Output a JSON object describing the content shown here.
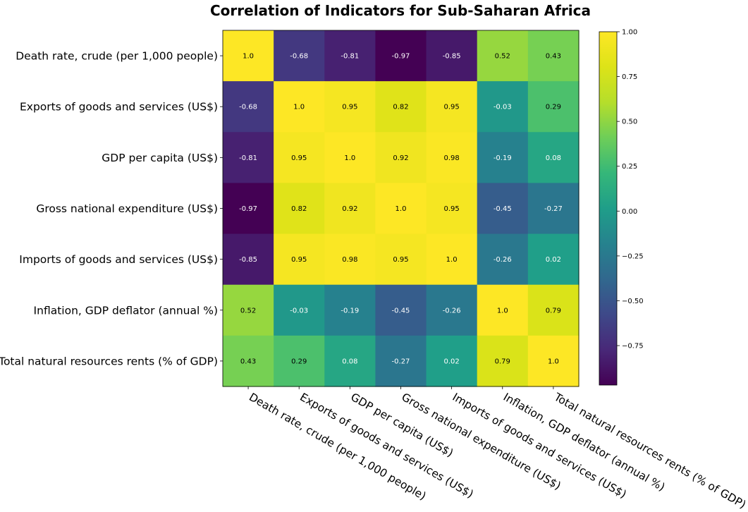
{
  "chart_data": {
    "type": "heatmap",
    "title": "Correlation of Indicators for Sub-Saharan Africa",
    "labels": [
      "Death rate, crude (per 1,000 people)",
      "Exports of goods and services (US$)",
      "GDP per capita (US$)",
      "Gross national expenditure (US$)",
      "Imports of goods and services (US$)",
      "Inflation, GDP deflator (annual %)",
      "Total natural resources rents (% of GDP)"
    ],
    "values": [
      [
        1.0,
        -0.68,
        -0.81,
        -0.97,
        -0.85,
        0.52,
        0.43
      ],
      [
        -0.68,
        1.0,
        0.95,
        0.82,
        0.95,
        -0.03,
        0.29
      ],
      [
        -0.81,
        0.95,
        1.0,
        0.92,
        0.98,
        -0.19,
        0.08
      ],
      [
        -0.97,
        0.82,
        0.92,
        1.0,
        0.95,
        -0.45,
        -0.27
      ],
      [
        -0.85,
        0.95,
        0.98,
        0.95,
        1.0,
        -0.26,
        0.02
      ],
      [
        0.52,
        -0.03,
        -0.19,
        -0.45,
        -0.26,
        1.0,
        0.79
      ],
      [
        0.43,
        0.29,
        0.08,
        -0.27,
        0.02,
        0.79,
        1.0
      ]
    ],
    "cell_text": [
      [
        "1.0",
        "-0.68",
        "-0.81",
        "-0.97",
        "-0.85",
        "0.52",
        "0.43"
      ],
      [
        "-0.68",
        "1.0",
        "0.95",
        "0.82",
        "0.95",
        "-0.03",
        "0.29"
      ],
      [
        "-0.81",
        "0.95",
        "1.0",
        "0.92",
        "0.98",
        "-0.19",
        "0.08"
      ],
      [
        "-0.97",
        "0.82",
        "0.92",
        "1.0",
        "0.95",
        "-0.45",
        "-0.27"
      ],
      [
        "-0.85",
        "0.95",
        "0.98",
        "0.95",
        "1.0",
        "-0.26",
        "0.02"
      ],
      [
        "0.52",
        "-0.03",
        "-0.19",
        "-0.45",
        "-0.26",
        "1.0",
        "0.79"
      ],
      [
        "0.43",
        "0.29",
        "0.08",
        "-0.27",
        "0.02",
        "0.79",
        "1.0"
      ]
    ],
    "colormap": "viridis",
    "vmin": -0.97,
    "vmax": 1.0,
    "colorbar_ticks": [
      1.0,
      0.75,
      0.5,
      0.25,
      0.0,
      -0.25,
      -0.5,
      -0.75
    ],
    "colorbar_tick_labels": [
      "1.00",
      "0.75",
      "0.50",
      "0.25",
      "0.00",
      "−0.25",
      "−0.50",
      "−0.75"
    ],
    "colorbar": "right",
    "grid": false
  }
}
